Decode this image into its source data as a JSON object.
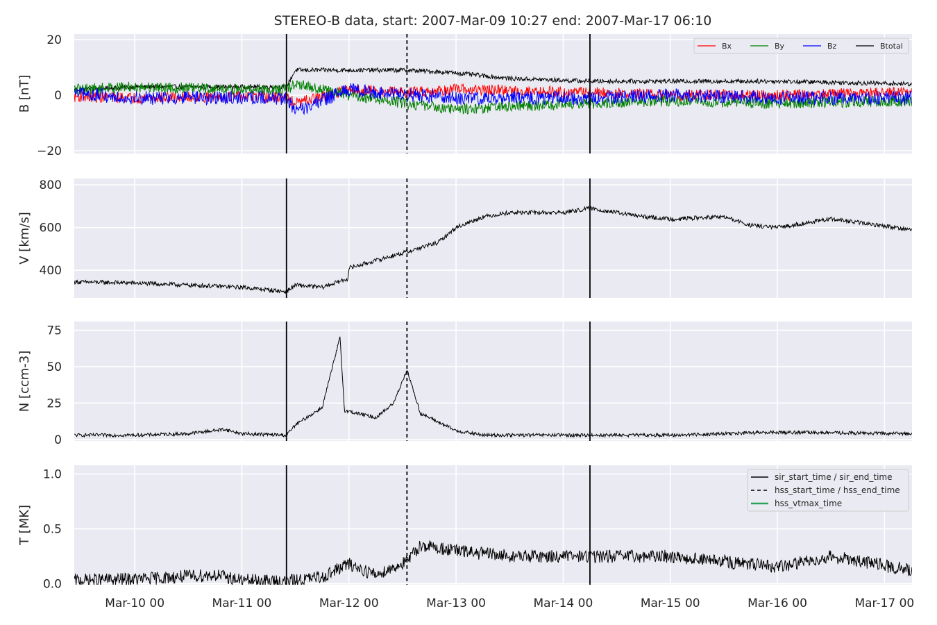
{
  "chart_data": {
    "type": "line",
    "title": "STEREO-B data, start: 2007-Mar-09 10:27  end: 2007-Mar-17 06:10",
    "x_range": [
      "2007-03-09 10:27",
      "2007-03-17 06:10"
    ],
    "x_ticks": [
      {
        "t": "2007-03-10 00:00",
        "label": "Mar-10 00"
      },
      {
        "t": "2007-03-11 00:00",
        "label": "Mar-11 00"
      },
      {
        "t": "2007-03-12 00:00",
        "label": "Mar-12 00"
      },
      {
        "t": "2007-03-13 00:00",
        "label": "Mar-13 00"
      },
      {
        "t": "2007-03-14 00:00",
        "label": "Mar-14 00"
      },
      {
        "t": "2007-03-15 00:00",
        "label": "Mar-15 00"
      },
      {
        "t": "2007-03-16 00:00",
        "label": "Mar-16 00"
      },
      {
        "t": "2007-03-17 00:00",
        "label": "Mar-17 00"
      }
    ],
    "grid": true,
    "event_lines": [
      {
        "t": "2007-03-11 10:00",
        "style": "solid",
        "name": "sir_start_time / sir_end_time"
      },
      {
        "t": "2007-03-12 13:00",
        "style": "dashed",
        "name": "hss_start_time / hss_end_time"
      },
      {
        "t": "2007-03-14 06:00",
        "style": "solid",
        "name": "sir_start_time / sir_end_time"
      }
    ],
    "legend_events": {
      "placement": "top-right",
      "entries": [
        {
          "name": "sir_start_time / sir_end_time",
          "color": "#000000",
          "style": "solid"
        },
        {
          "name": "hss_start_time / hss_end_time",
          "color": "#000000",
          "style": "dashed"
        },
        {
          "name": "hss_vtmax_time",
          "color": "#2ca25f",
          "style": "solid"
        }
      ]
    },
    "panels": [
      {
        "id": "B",
        "ylabel": "B [nT]",
        "ylim": [
          -21,
          22
        ],
        "yticks": [
          {
            "v": -20,
            "label": "−20"
          },
          {
            "v": 0,
            "label": "0"
          },
          {
            "v": 20,
            "label": "20"
          }
        ],
        "legend": {
          "placement": "top-right",
          "entries": [
            {
              "name": "Bx",
              "color": "#ff0000"
            },
            {
              "name": "By",
              "color": "#008000"
            },
            {
              "name": "Bz",
              "color": "#0000ff"
            },
            {
              "name": "Btotal",
              "color": "#000000"
            }
          ]
        },
        "series": [
          {
            "name": "Btotal",
            "color": "#000000",
            "noise": 0.8,
            "x": [
              "2007-03-09 10:27",
              "2007-03-10 00:00",
              "2007-03-11 00:00",
              "2007-03-11 10:00",
              "2007-03-11 12:00",
              "2007-03-12 00:00",
              "2007-03-12 13:00",
              "2007-03-13 00:00",
              "2007-03-13 12:00",
              "2007-03-14 06:00",
              "2007-03-15 00:00",
              "2007-03-16 00:00",
              "2007-03-17 06:10"
            ],
            "y": [
              2,
              3,
              3,
              3,
              9,
              9,
              9,
              8,
              6,
              5,
              5,
              5,
              4
            ]
          },
          {
            "name": "Bx",
            "color": "#ff0000",
            "noise": 2.0,
            "x": [
              "2007-03-09 10:27",
              "2007-03-10 00:00",
              "2007-03-11 00:00",
              "2007-03-11 10:00",
              "2007-03-11 12:00",
              "2007-03-12 00:00",
              "2007-03-12 13:00",
              "2007-03-13 00:00",
              "2007-03-14 06:00",
              "2007-03-15 00:00",
              "2007-03-16 00:00",
              "2007-03-17 06:10"
            ],
            "y": [
              -0.5,
              -1,
              -0.5,
              -1,
              -3,
              2,
              1,
              2,
              1,
              0,
              0,
              1
            ]
          },
          {
            "name": "By",
            "color": "#008000",
            "noise": 2.0,
            "x": [
              "2007-03-09 10:27",
              "2007-03-10 00:00",
              "2007-03-11 00:00",
              "2007-03-11 10:00",
              "2007-03-11 12:00",
              "2007-03-12 00:00",
              "2007-03-12 13:00",
              "2007-03-13 00:00",
              "2007-03-14 06:00",
              "2007-03-15 00:00",
              "2007-03-16 00:00",
              "2007-03-17 06:10"
            ],
            "y": [
              2,
              3,
              2,
              2,
              4,
              0,
              -3,
              -5,
              -3,
              -2,
              -3,
              -2
            ]
          },
          {
            "name": "Bz",
            "color": "#0000ff",
            "noise": 2.5,
            "x": [
              "2007-03-09 10:27",
              "2007-03-10 00:00",
              "2007-03-11 00:00",
              "2007-03-11 10:00",
              "2007-03-11 12:00",
              "2007-03-12 00:00",
              "2007-03-12 13:00",
              "2007-03-13 00:00",
              "2007-03-14 06:00",
              "2007-03-15 00:00",
              "2007-03-16 00:00",
              "2007-03-17 06:10"
            ],
            "y": [
              0.5,
              -1,
              -1,
              -1,
              -6,
              2,
              0,
              -1,
              -1,
              0,
              -1,
              -1
            ]
          }
        ]
      },
      {
        "id": "V",
        "ylabel": "V [km/s]",
        "ylim": [
          270,
          830
        ],
        "yticks": [
          {
            "v": 400,
            "label": "400"
          },
          {
            "v": 600,
            "label": "600"
          },
          {
            "v": 800,
            "label": "800"
          }
        ],
        "series": [
          {
            "name": "V",
            "color": "#000000",
            "noise": 10,
            "x": [
              "2007-03-09 10:27",
              "2007-03-10 00:00",
              "2007-03-10 12:00",
              "2007-03-11 00:00",
              "2007-03-11 09:30",
              "2007-03-11 10:00",
              "2007-03-11 12:00",
              "2007-03-11 18:00",
              "2007-03-11 23:45",
              "2007-03-12 00:00",
              "2007-03-12 12:00",
              "2007-03-12 20:00",
              "2007-03-13 00:00",
              "2007-03-13 06:00",
              "2007-03-13 12:00",
              "2007-03-14 00:00",
              "2007-03-14 06:00",
              "2007-03-14 18:00",
              "2007-03-15 00:00",
              "2007-03-15 12:00",
              "2007-03-15 18:00",
              "2007-03-16 00:00",
              "2007-03-16 12:00",
              "2007-03-17 06:10"
            ],
            "y": [
              345,
              340,
              330,
              320,
              300,
              300,
              330,
              320,
              360,
              410,
              480,
              530,
              600,
              650,
              670,
              670,
              690,
              650,
              640,
              650,
              610,
              600,
              640,
              590
            ]
          }
        ]
      },
      {
        "id": "N",
        "ylabel": "N [ccm-3]",
        "ylim": [
          -1,
          81
        ],
        "yticks": [
          {
            "v": 0,
            "label": "0"
          },
          {
            "v": 25,
            "label": "25"
          },
          {
            "v": 50,
            "label": "50"
          },
          {
            "v": 75,
            "label": "75"
          }
        ],
        "series": [
          {
            "name": "N",
            "color": "#000000",
            "noise": 1.2,
            "x": [
              "2007-03-09 10:27",
              "2007-03-10 00:00",
              "2007-03-10 12:00",
              "2007-03-10 20:00",
              "2007-03-11 00:00",
              "2007-03-11 10:00",
              "2007-03-11 12:00",
              "2007-03-11 18:00",
              "2007-03-11 22:00",
              "2007-03-11 23:00",
              "2007-03-12 06:00",
              "2007-03-12 10:00",
              "2007-03-12 13:00",
              "2007-03-12 16:00",
              "2007-03-12 20:00",
              "2007-03-13 00:00",
              "2007-03-13 06:00",
              "2007-03-14 00:00",
              "2007-03-15 00:00",
              "2007-03-16 00:00",
              "2007-03-17 06:10"
            ],
            "y": [
              3,
              3,
              4,
              7,
              4,
              3,
              10,
              22,
              70,
              20,
              15,
              25,
              48,
              18,
              12,
              6,
              3,
              3,
              3,
              5,
              4
            ]
          }
        ]
      },
      {
        "id": "T",
        "ylabel": "T [MK]",
        "ylim": [
          -0.01,
          1.08
        ],
        "yticks": [
          {
            "v": 0,
            "label": "0.0"
          },
          {
            "v": 0.5,
            "label": "0.5"
          },
          {
            "v": 1.0,
            "label": "1.0"
          }
        ],
        "series": [
          {
            "name": "T",
            "color": "#000000",
            "noise": 0.06,
            "x": [
              "2007-03-09 10:27",
              "2007-03-10 00:00",
              "2007-03-10 18:00",
              "2007-03-11 00:00",
              "2007-03-11 10:00",
              "2007-03-11 18:00",
              "2007-03-11 23:50",
              "2007-03-12 06:00",
              "2007-03-12 13:00",
              "2007-03-12 16:00",
              "2007-03-13 00:00",
              "2007-03-13 12:00",
              "2007-03-14 00:00",
              "2007-03-15 00:00",
              "2007-03-15 12:00",
              "2007-03-16 00:00",
              "2007-03-16 12:00",
              "2007-03-17 06:10"
            ],
            "y": [
              0.03,
              0.04,
              0.08,
              0.03,
              0.02,
              0.06,
              0.18,
              0.08,
              0.2,
              0.35,
              0.3,
              0.25,
              0.25,
              0.25,
              0.2,
              0.15,
              0.25,
              0.12
            ]
          }
        ]
      }
    ]
  }
}
